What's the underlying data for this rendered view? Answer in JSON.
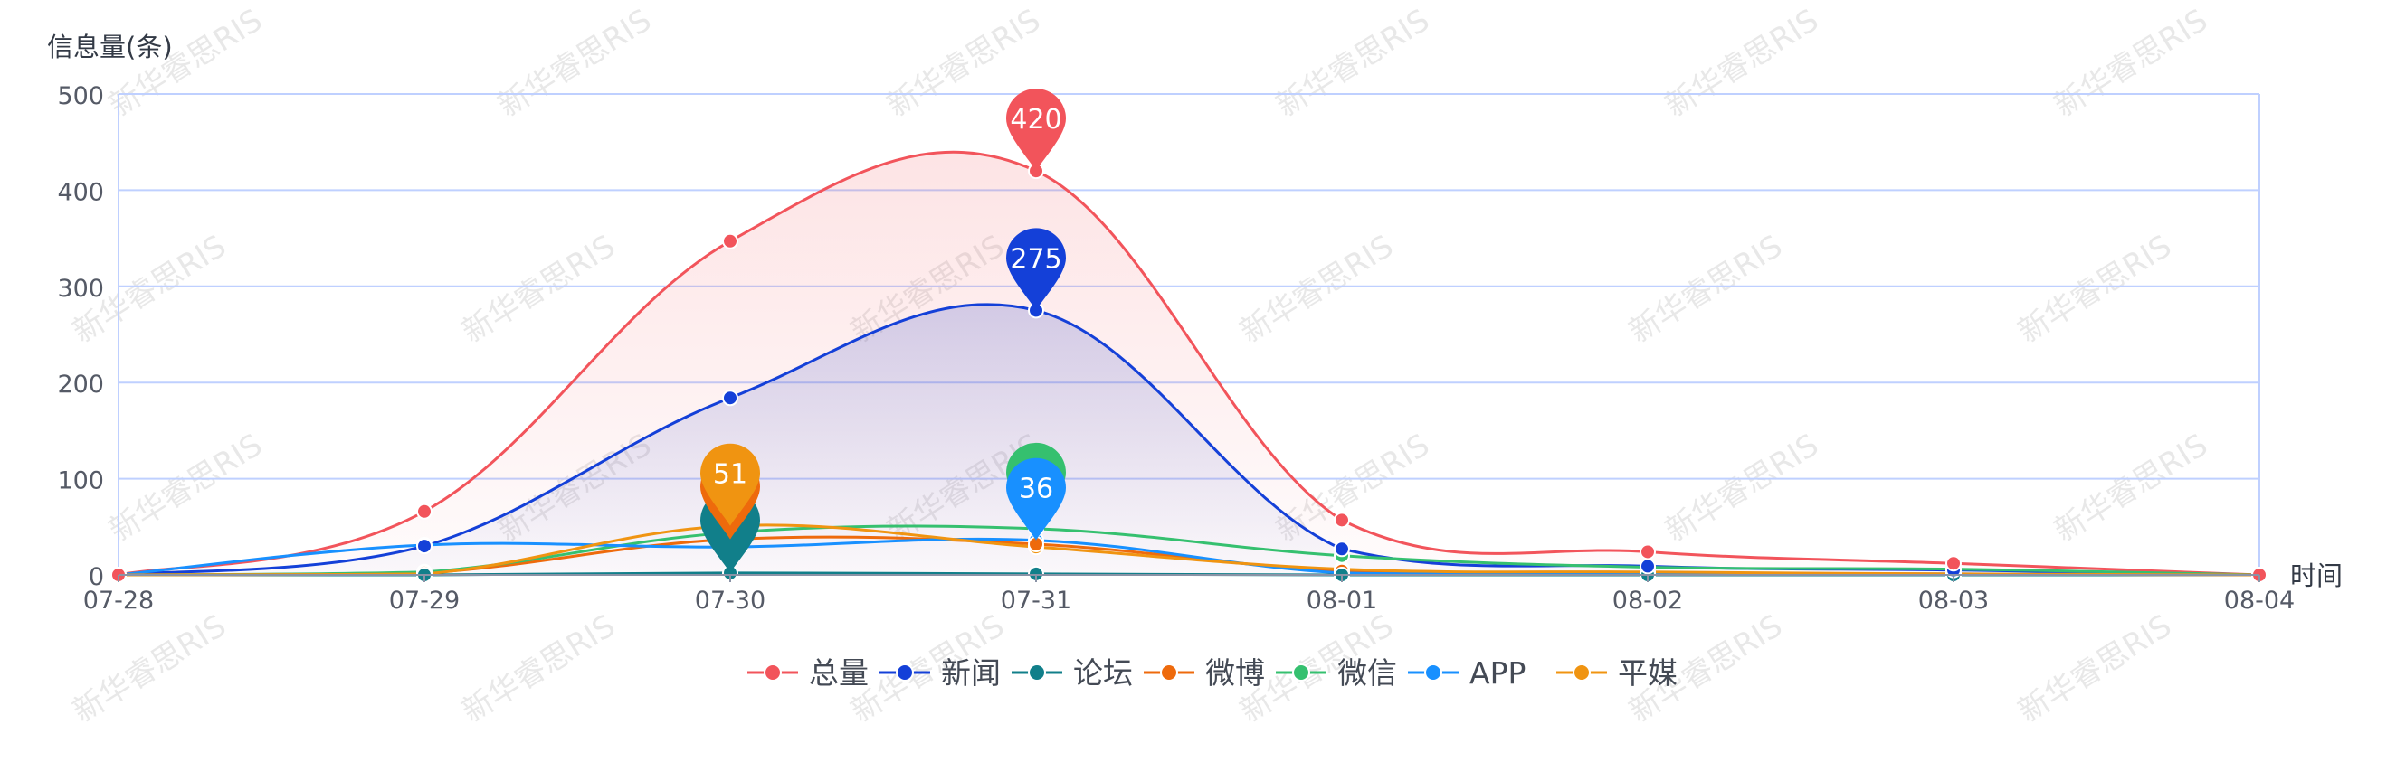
{
  "chart_data": {
    "type": "line",
    "ylabel": "信息量(条)",
    "xlabel": "时间",
    "categories": [
      "07-28",
      "07-29",
      "07-30",
      "07-31",
      "08-01",
      "08-02",
      "08-03",
      "08-04"
    ],
    "ylim": [
      0,
      500
    ],
    "yticks": [
      0,
      100,
      200,
      300,
      400,
      500
    ],
    "grid": true,
    "legend_position": "bottom-center",
    "watermark_text": "新华睿思RIS",
    "series": [
      {
        "name": "总量",
        "color": "#f2545b",
        "values": [
          0,
          66,
          347,
          420,
          57,
          24,
          12,
          0
        ],
        "area": true,
        "area_color": "#f2545b",
        "peak_pin": 420,
        "pin_index": 3
      },
      {
        "name": "新闻",
        "color": "#1440d8",
        "values": [
          0,
          30,
          184,
          275,
          27,
          9,
          5,
          0
        ],
        "area": true,
        "area_color": "#3a4fc8",
        "peak_pin": 275,
        "pin_index": 3
      },
      {
        "name": "论坛",
        "color": "#117f8a",
        "values": [
          0,
          0,
          2,
          1,
          0,
          0,
          0,
          0
        ],
        "pin_index": 2
      },
      {
        "name": "微博",
        "color": "#ee6a0c",
        "values": [
          0,
          2,
          37,
          32,
          4,
          2,
          1,
          0
        ],
        "pin_index": 2
      },
      {
        "name": "微信",
        "color": "#35c06f",
        "values": [
          0,
          3,
          44,
          48,
          20,
          8,
          6,
          0
        ],
        "pin_index": 3
      },
      {
        "name": "APP",
        "color": "#1890ff",
        "values": [
          0,
          31,
          29,
          36,
          2,
          1,
          1,
          0
        ],
        "peak_pin": 36,
        "pin_index": 3
      },
      {
        "name": "平媒",
        "color": "#f09411",
        "values": [
          0,
          1,
          51,
          29,
          6,
          3,
          1,
          0
        ],
        "peak_pin": 51,
        "pin_index": 2
      }
    ]
  }
}
